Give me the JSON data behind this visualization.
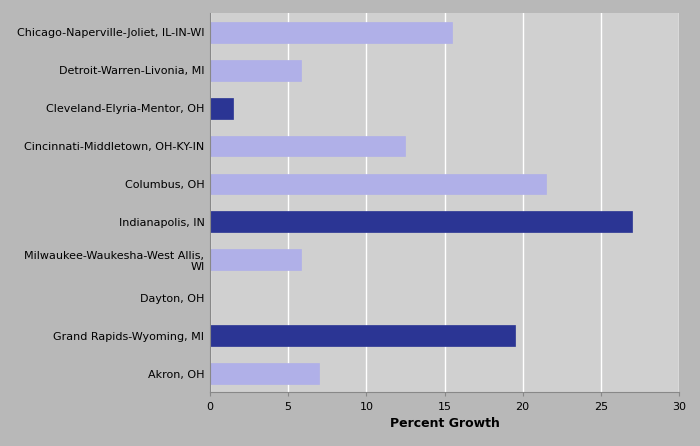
{
  "categories": [
    "Chicago-Naperville-Joliet, IL-IN-WI",
    "Detroit-Warren-Livonia, MI",
    "Cleveland-Elyria-Mentor, OH",
    "Cincinnati-Middletown, OH-KY-IN",
    "Columbus, OH",
    "Indianapolis, IN",
    "Milwaukee-Waukesha-West Allis,\nWI",
    "Dayton, OH",
    "Grand Rapids-Wyoming, MI",
    "Akron, OH"
  ],
  "values": [
    15.5,
    5.8,
    1.5,
    12.5,
    21.5,
    27.0,
    5.8,
    0.0,
    19.5,
    7.0
  ],
  "bar_colors": [
    "#b0b0e8",
    "#b0b0e8",
    "#2b3594",
    "#b0b0e8",
    "#b0b0e8",
    "#2b3594",
    "#b0b0e8",
    "#b0b0e8",
    "#2b3594",
    "#b0b0e8"
  ],
  "xlabel": "Percent Growth",
  "xlim": [
    0,
    30
  ],
  "xticks": [
    0,
    5,
    10,
    15,
    20,
    25,
    30
  ],
  "outer_bg": "#b8b8b8",
  "plot_bg": "#d0d0d0",
  "grid_color": "#ffffff",
  "bar_height": 0.55,
  "xlabel_fontsize": 9,
  "tick_fontsize": 8,
  "label_fontsize": 8
}
